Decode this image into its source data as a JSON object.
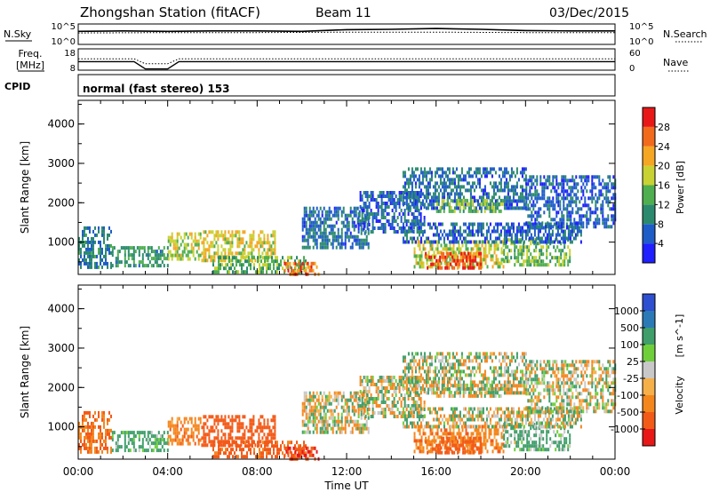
{
  "header": {
    "title": "Zhongshan Station (fitACF)",
    "beam": "Beam 11",
    "date": "03/Dec/2015"
  },
  "noise_panel": {
    "left_label": "N.Sky",
    "left_ticks": [
      "10^5",
      "10^0"
    ],
    "right_ticks": [
      "10^5",
      "10^0"
    ],
    "right_label": "N.Search"
  },
  "freq_panel": {
    "left_label_line1": "Freq.",
    "left_label_line2": "[MHz]",
    "left_ticks": [
      "18",
      "8"
    ],
    "right_ticks": [
      "60",
      "0"
    ],
    "right_label": "Nave"
  },
  "cpid": {
    "label": "CPID",
    "mode": "normal (fast stereo) 153"
  },
  "x_axis": {
    "label": "Time UT",
    "ticks": [
      "00:00",
      "04:00",
      "08:00",
      "12:00",
      "16:00",
      "20:00",
      "00:00"
    ]
  },
  "power_panel": {
    "ylabel": "Slant Range [km]",
    "yticks": [
      "1000",
      "2000",
      "3000",
      "4000"
    ],
    "colorbar_label": "Power [dB]",
    "colorbar_ticks": [
      "4",
      "8",
      "12",
      "16",
      "20",
      "24",
      "28"
    ],
    "colors": [
      "#1f1fff",
      "#1e5cc8",
      "#2b8a6e",
      "#4fae4f",
      "#c8d232",
      "#f5a623",
      "#f26a1b",
      "#e81818"
    ]
  },
  "velocity_panel": {
    "ylabel": "Slant Range [km]",
    "yticks": [
      "1000",
      "2000",
      "3000",
      "4000"
    ],
    "colorbar_label": "Velocity",
    "colorbar_unit": "[m s^-1]",
    "colorbar_ticks": [
      "1000",
      "500",
      "100",
      "25",
      "-25",
      "-100",
      "-500",
      "-1000"
    ],
    "colors": [
      "#2d4fd0",
      "#2b7ab6",
      "#3f9e6a",
      "#6fcf3a",
      "#c8c8c8",
      "#f5b04a",
      "#f4861e",
      "#f25a18",
      "#e81818"
    ]
  },
  "chart_data": [
    {
      "type": "line",
      "title": "Noise",
      "x_unit": "hours UT",
      "xlim": [
        0,
        24
      ],
      "ylim_log10": [
        0,
        5
      ],
      "series": [
        {
          "values_log10": [
            [
              0,
              3.2
            ],
            [
              2,
              3.3
            ],
            [
              4,
              3.2
            ],
            [
              6,
              3.3
            ],
            [
              8,
              3.3
            ],
            [
              10,
              3.2
            ],
            [
              12,
              3.6
            ],
            [
              14,
              3.7
            ],
            [
              16,
              3.9
            ],
            [
              18,
              3.7
            ],
            [
              20,
              3.4
            ],
            [
              22,
              3.3
            ],
            [
              24,
              3.3
            ]
          ]
        },
        {
          "style": "dotted",
          "values_log10": [
            [
              0,
              2.8
            ],
            [
              4,
              2.9
            ],
            [
              8,
              2.9
            ],
            [
              12,
              3.0
            ],
            [
              16,
              3.0
            ],
            [
              20,
              2.9
            ],
            [
              24,
              2.9
            ]
          ]
        }
      ]
    },
    {
      "type": "line",
      "title": "Frequency / Nave",
      "xlim": [
        0,
        24
      ],
      "ylim_freq_mhz": [
        8,
        18
      ],
      "ylim_nave": [
        0,
        60
      ],
      "series": [
        {
          "values": [
            [
              0,
              12
            ],
            [
              2.5,
              12
            ],
            [
              3,
              8.6
            ],
            [
              4,
              8.6
            ],
            [
              4.5,
              12
            ],
            [
              24,
              12
            ]
          ]
        },
        {
          "style": "dotted",
          "values": [
            [
              0,
              32
            ],
            [
              2.5,
              32
            ],
            [
              3,
              18
            ],
            [
              4,
              18
            ],
            [
              4.5,
              32
            ],
            [
              24,
              32
            ]
          ]
        }
      ]
    },
    {
      "type": "heatmap",
      "title": "Power [dB]",
      "x_unit": "hours UT",
      "y_unit": "km",
      "xlim": [
        0,
        24
      ],
      "ylim": [
        180,
        4600
      ],
      "zlim": [
        0,
        30
      ],
      "regions": [
        {
          "x": [
            0,
            1.5
          ],
          "y": [
            400,
            1400
          ],
          "value": 8
        },
        {
          "x": [
            1.5,
            4.0
          ],
          "y": [
            400,
            900
          ],
          "value": 11
        },
        {
          "x": [
            4.0,
            5.5
          ],
          "y": [
            600,
            1250
          ],
          "value": 16
        },
        {
          "x": [
            5.5,
            8.8
          ],
          "y": [
            500,
            1300
          ],
          "value": 18
        },
        {
          "x": [
            6.0,
            10.2
          ],
          "y": [
            200,
            650
          ],
          "value": 13
        },
        {
          "x": [
            9.2,
            10.8
          ],
          "y": [
            200,
            500
          ],
          "value": 24
        },
        {
          "x": [
            10.0,
            13.0
          ],
          "y": [
            900,
            1900
          ],
          "value": 7
        },
        {
          "x": [
            12.5,
            15.5
          ],
          "y": [
            1300,
            2300
          ],
          "value": 6
        },
        {
          "x": [
            15.0,
            19.0
          ],
          "y": [
            400,
            1050
          ],
          "value": 17
        },
        {
          "x": [
            15.5,
            18.0
          ],
          "y": [
            300,
            750
          ],
          "value": 26
        },
        {
          "x": [
            19.0,
            22.0
          ],
          "y": [
            400,
            1100
          ],
          "value": 14
        },
        {
          "x": [
            14.5,
            22.5
          ],
          "y": [
            1000,
            1500
          ],
          "value": 6
        },
        {
          "x": [
            14.5,
            20.0
          ],
          "y": [
            1900,
            2900
          ],
          "value": 7
        },
        {
          "x": [
            16.0,
            19.0
          ],
          "y": [
            1800,
            2100
          ],
          "value": 14
        },
        {
          "x": [
            20.0,
            24.0
          ],
          "y": [
            1400,
            2700
          ],
          "value": 6
        }
      ]
    },
    {
      "type": "heatmap",
      "title": "Velocity [m s^-1]",
      "x_unit": "hours UT",
      "y_unit": "km",
      "xlim": [
        0,
        24
      ],
      "ylim": [
        180,
        4600
      ],
      "zlim": [
        -1000,
        1000
      ],
      "regions": [
        {
          "x": [
            0,
            1.5
          ],
          "y": [
            400,
            1400
          ],
          "value": -300
        },
        {
          "x": [
            1.5,
            4.0
          ],
          "y": [
            400,
            900
          ],
          "value": 150
        },
        {
          "x": [
            4.0,
            5.5
          ],
          "y": [
            600,
            1250
          ],
          "value": -200
        },
        {
          "x": [
            5.5,
            8.8
          ],
          "y": [
            500,
            1300
          ],
          "value": -600
        },
        {
          "x": [
            6.0,
            10.2
          ],
          "y": [
            200,
            650
          ],
          "value": -400
        },
        {
          "x": [
            9.2,
            10.8
          ],
          "y": [
            200,
            500
          ],
          "value": -700
        },
        {
          "x": [
            10.0,
            13.0
          ],
          "y": [
            900,
            1900
          ],
          "value": -20
        },
        {
          "x": [
            12.5,
            15.5
          ],
          "y": [
            1300,
            2300
          ],
          "value": 0
        },
        {
          "x": [
            15.0,
            19.0
          ],
          "y": [
            400,
            1050
          ],
          "value": -200
        },
        {
          "x": [
            15.5,
            18.0
          ],
          "y": [
            300,
            750
          ],
          "value": -400
        },
        {
          "x": [
            19.0,
            22.0
          ],
          "y": [
            400,
            1100
          ],
          "value": 120
        },
        {
          "x": [
            14.5,
            22.5
          ],
          "y": [
            1000,
            1500
          ],
          "value": 0
        },
        {
          "x": [
            14.5,
            20.0
          ],
          "y": [
            1900,
            2900
          ],
          "value": 0
        },
        {
          "x": [
            16.0,
            19.0
          ],
          "y": [
            1800,
            2100
          ],
          "value": 0
        },
        {
          "x": [
            20.0,
            24.0
          ],
          "y": [
            1400,
            2700
          ],
          "value": 0
        }
      ]
    }
  ]
}
